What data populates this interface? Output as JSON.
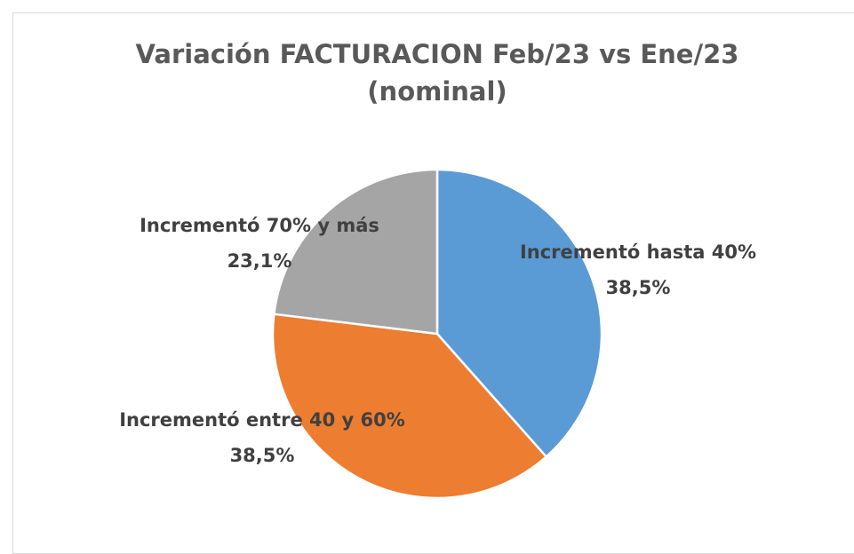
{
  "chart_data": {
    "type": "pie",
    "title": "Variación FACTURACION Feb/23 vs Ene/23 (nominal)",
    "categories": [
      "Incrementó hasta 40%",
      "Incrementó entre 40 y 60%",
      "Incrementó 70% y más"
    ],
    "values": [
      38.5,
      38.5,
      23.1
    ],
    "value_labels": [
      "38,5%",
      "38,5%",
      "23,1%"
    ],
    "colors": [
      "#5b9bd5",
      "#ed7d31",
      "#a5a5a5"
    ]
  }
}
